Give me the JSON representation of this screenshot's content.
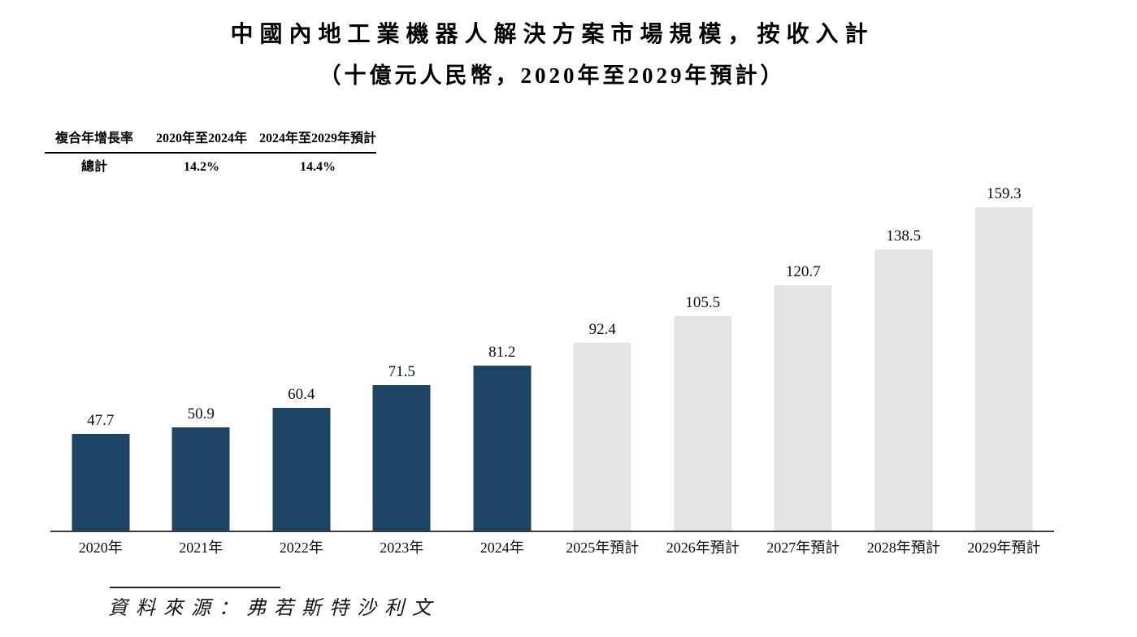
{
  "page": {
    "title_line1": "中國內地工業機器人解決方案市場規模，按收入計",
    "title_line2": "（十億元人民幣，2020年至2029年預計）",
    "source_note": "資料來源：弗若斯特沙利文"
  },
  "cagr_table": {
    "col_headers": [
      "複合年增長率",
      "2020年至2024年",
      "2024年至2029年預計"
    ],
    "row_label": "總計",
    "row_values": [
      "14.2%",
      "14.4%"
    ]
  },
  "chart_data": {
    "type": "bar",
    "title": "中國內地工業機器人解決方案市場規模，按收入計",
    "subtitle": "（十億元人民幣，2020年至2029年預計）",
    "categories": [
      "2020年",
      "2021年",
      "2022年",
      "2023年",
      "2024年",
      "2025年預計",
      "2026年預計",
      "2027年預計",
      "2028年預計",
      "2029年預計"
    ],
    "values": [
      47.7,
      50.9,
      60.4,
      71.5,
      81.2,
      92.4,
      105.5,
      120.7,
      138.5,
      159.3
    ],
    "bar_styles": [
      "actual",
      "actual",
      "actual",
      "actual",
      "actual",
      "forecast",
      "forecast",
      "forecast",
      "forecast",
      "forecast"
    ],
    "colors": {
      "actual": "#1d4365",
      "forecast": "#e4e4e4"
    },
    "cagr_2020_2024": "14.2%",
    "cagr_2024_2029": "14.4%",
    "xlabel": "",
    "ylabel": "",
    "ylim": [
      0,
      170
    ],
    "grid": false,
    "legend": false,
    "value_labels": true,
    "source": "資料來源：弗若斯特沙利文"
  }
}
